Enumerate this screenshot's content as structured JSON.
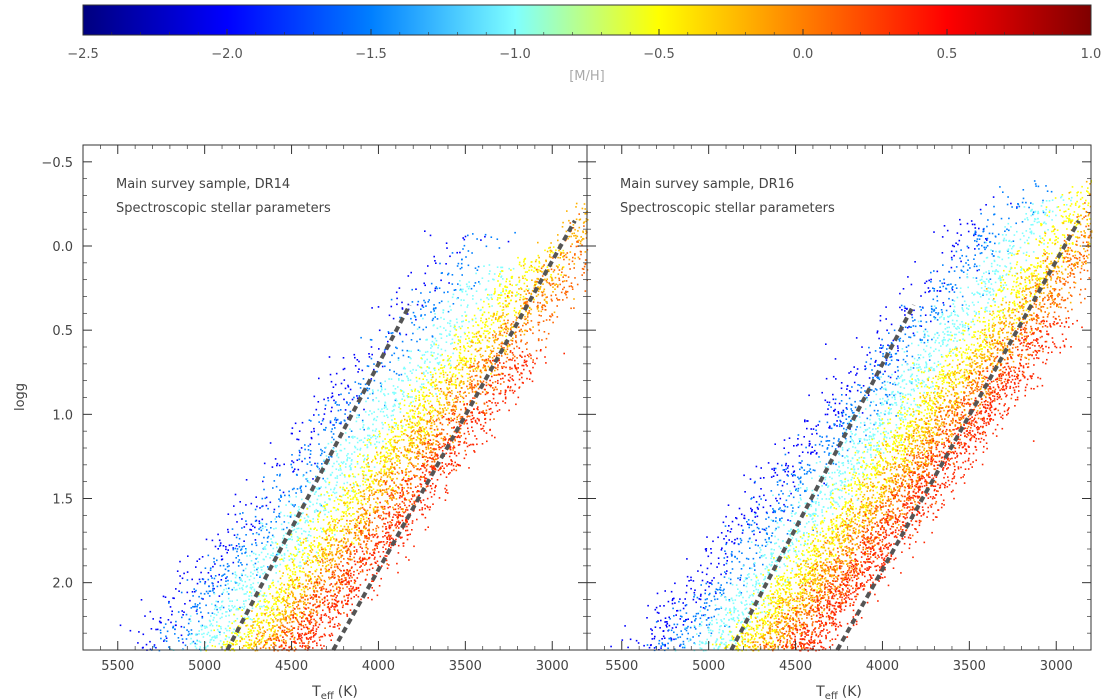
{
  "colorbar": {
    "label": "[M/H]",
    "vmin": -2.5,
    "vmax": 1.0,
    "ticks": [
      -2.5,
      -2.0,
      -1.5,
      -1.0,
      -0.5,
      0.0,
      0.5,
      1.0
    ],
    "tick_labels": [
      "−2.5",
      "−2.0",
      "−1.5",
      "−1.0",
      "−0.5",
      "0.0",
      "0.5",
      "1.0"
    ],
    "colormap": "jet",
    "colors": [
      "#00007f",
      "#0000ff",
      "#007fff",
      "#7fffff",
      "#ffff00",
      "#ff7f00",
      "#ff0000",
      "#7f0000"
    ]
  },
  "chart_data": [
    {
      "type": "scatter",
      "panel": "left",
      "annotation_lines": [
        "Main survey sample, DR14",
        "Spectroscopic stellar parameters"
      ],
      "xlabel_main": "T",
      "xlabel_sub": "eff",
      "xlabel_unit": "(K)",
      "ylabel": "logg",
      "xlim": [
        5700,
        2800
      ],
      "ylim": [
        2.4,
        -0.6
      ],
      "x_ticks": [
        5500,
        5000,
        4500,
        4000,
        3500,
        3000
      ],
      "y_ticks": [
        -0.5,
        0.0,
        0.5,
        1.0,
        1.5,
        2.0
      ],
      "y_tick_labels": [
        "−0.5",
        "0.0",
        "0.5",
        "1.0",
        "1.5",
        "2.0"
      ],
      "color_by": "[M/H]",
      "metallicity_bands": [
        {
          "mh": -2.0,
          "teff_at_logg2": 5060,
          "slope_K_per_dex": 550,
          "count": 300,
          "logg_range": [
            -0.1,
            2.4
          ]
        },
        {
          "mh": -1.5,
          "teff_at_logg2": 4920,
          "slope_K_per_dex": 550,
          "count": 500,
          "logg_range": [
            -0.1,
            2.4
          ]
        },
        {
          "mh": -1.0,
          "teff_at_logg2": 4720,
          "slope_K_per_dex": 550,
          "count": 900,
          "logg_range": [
            0.1,
            2.4
          ]
        },
        {
          "mh": -0.5,
          "teff_at_logg2": 4520,
          "slope_K_per_dex": 550,
          "count": 1300,
          "logg_range": [
            0.0,
            2.4
          ]
        },
        {
          "mh": -0.2,
          "teff_at_logg2": 4400,
          "slope_K_per_dex": 550,
          "count": 1300,
          "logg_range": [
            -0.3,
            2.4
          ]
        },
        {
          "mh": 0.1,
          "teff_at_logg2": 4290,
          "slope_K_per_dex": 550,
          "count": 1100,
          "logg_range": [
            -0.3,
            2.4
          ]
        },
        {
          "mh": 0.35,
          "teff_at_logg2": 4170,
          "slope_K_per_dex": 550,
          "count": 900,
          "logg_range": [
            0.6,
            2.4
          ]
        }
      ],
      "reference_lines": [
        {
          "points": [
            [
              4870,
              2.4
            ],
            [
              3820,
              0.35
            ]
          ]
        },
        {
          "points": [
            [
              4260,
              2.4
            ],
            [
              2870,
              -0.15
            ]
          ]
        }
      ]
    },
    {
      "type": "scatter",
      "panel": "right",
      "annotation_lines": [
        "Main survey sample, DR16",
        "Spectroscopic stellar parameters"
      ],
      "xlabel_main": "T",
      "xlabel_sub": "eff",
      "xlabel_unit": "(K)",
      "xlim": [
        5700,
        2800
      ],
      "ylim": [
        2.4,
        -0.6
      ],
      "x_ticks": [
        5500,
        5000,
        4500,
        4000,
        3500,
        3000
      ],
      "color_by": "[M/H]",
      "metallicity_bands": [
        {
          "mh": -2.0,
          "teff_at_logg2": 5060,
          "slope_K_per_dex": 550,
          "count": 450,
          "logg_range": [
            -0.3,
            2.4
          ]
        },
        {
          "mh": -1.5,
          "teff_at_logg2": 4920,
          "slope_K_per_dex": 550,
          "count": 700,
          "logg_range": [
            -0.4,
            2.4
          ]
        },
        {
          "mh": -1.0,
          "teff_at_logg2": 4720,
          "slope_K_per_dex": 550,
          "count": 1200,
          "logg_range": [
            -0.3,
            2.4
          ]
        },
        {
          "mh": -0.5,
          "teff_at_logg2": 4520,
          "slope_K_per_dex": 550,
          "count": 1700,
          "logg_range": [
            -0.4,
            2.4
          ]
        },
        {
          "mh": -0.2,
          "teff_at_logg2": 4400,
          "slope_K_per_dex": 550,
          "count": 1700,
          "logg_range": [
            -0.5,
            2.4
          ]
        },
        {
          "mh": 0.1,
          "teff_at_logg2": 4290,
          "slope_K_per_dex": 550,
          "count": 1500,
          "logg_range": [
            -0.5,
            2.4
          ]
        },
        {
          "mh": 0.35,
          "teff_at_logg2": 4170,
          "slope_K_per_dex": 550,
          "count": 1300,
          "logg_range": [
            0.4,
            2.4
          ]
        }
      ],
      "reference_lines": [
        {
          "points": [
            [
              4870,
              2.4
            ],
            [
              3820,
              0.35
            ]
          ]
        },
        {
          "points": [
            [
              4260,
              2.4
            ],
            [
              2870,
              -0.15
            ]
          ]
        }
      ]
    }
  ]
}
